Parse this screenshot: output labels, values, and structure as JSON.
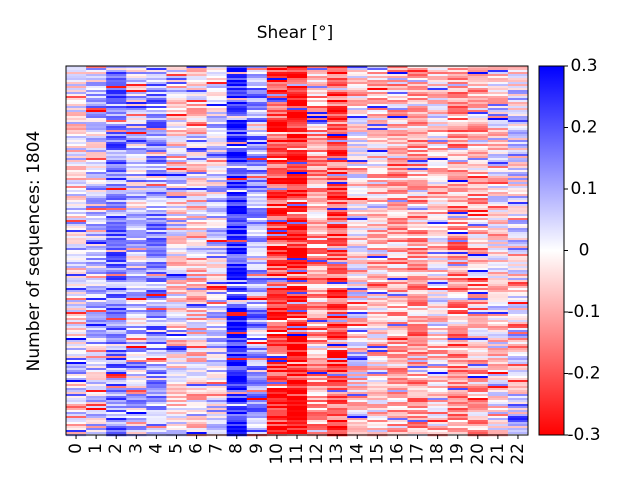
{
  "chart_data": {
    "type": "heatmap",
    "title": "Shear [°]",
    "xlabel": "",
    "ylabel": "Number of sequences: 1804",
    "x": [
      "0",
      "1",
      "2",
      "3",
      "4",
      "5",
      "6",
      "7",
      "8",
      "9",
      "10",
      "11",
      "12",
      "13",
      "14",
      "15",
      "16",
      "17",
      "18",
      "19",
      "20",
      "21",
      "22"
    ],
    "n_rows": 1804,
    "column_base_values": [
      0.0,
      0.05,
      0.15,
      0.05,
      0.12,
      -0.02,
      -0.05,
      0.05,
      0.25,
      0.12,
      -0.22,
      -0.28,
      -0.1,
      -0.2,
      -0.02,
      -0.05,
      -0.08,
      -0.1,
      -0.05,
      -0.12,
      -0.08,
      -0.02,
      0.02
    ],
    "colorbar": {
      "min": -0.3,
      "max": 0.3,
      "ticks": [
        "0.3",
        "0.2",
        "0.1",
        "0",
        "-0.1",
        "-0.2",
        "-0.3"
      ],
      "colormap": "bwr",
      "low_color": "#ff0000",
      "mid_color": "#ffffff",
      "high_color": "#0000ff"
    },
    "grid": false
  }
}
